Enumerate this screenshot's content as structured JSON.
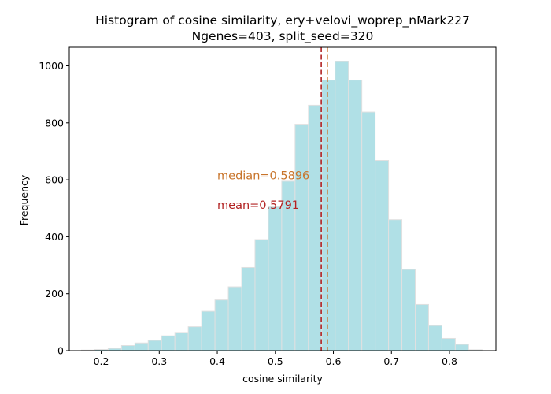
{
  "chart_data": {
    "type": "histogram",
    "title": "Histogram of cosine similarity, ery+velovi_woprep_nMark227",
    "subtitle": "Ngenes=403, split_seed=320",
    "xlabel": "cosine similarity",
    "ylabel": "Frequency",
    "xlim": [
      0.145,
      0.88
    ],
    "ylim": [
      0,
      1065
    ],
    "xticks": [
      0.2,
      0.3,
      0.4,
      0.5,
      0.6,
      0.7,
      0.8
    ],
    "xtick_labels": [
      "0.2",
      "0.3",
      "0.4",
      "0.5",
      "0.6",
      "0.7",
      "0.8"
    ],
    "yticks": [
      0,
      200,
      400,
      600,
      800,
      1000
    ],
    "ytick_labels": [
      "0",
      "200",
      "400",
      "600",
      "800",
      "1000"
    ],
    "bins": [
      0.166,
      0.189,
      0.212,
      0.235,
      0.258,
      0.281,
      0.304,
      0.327,
      0.35,
      0.373,
      0.396,
      0.419,
      0.442,
      0.465,
      0.488,
      0.511,
      0.534,
      0.557,
      0.58,
      0.603,
      0.626,
      0.649,
      0.672,
      0.695,
      0.718,
      0.741,
      0.764,
      0.787,
      0.81,
      0.833,
      0.856
    ],
    "counts": [
      2,
      4,
      8,
      18,
      27,
      36,
      52,
      64,
      84,
      138,
      178,
      224,
      292,
      390,
      505,
      595,
      795,
      862,
      950,
      1015,
      950,
      838,
      668,
      460,
      285,
      162,
      88,
      43,
      22,
      3
    ],
    "bar_color": "#b0e0e6",
    "edge_color": "#e0e0e0",
    "grid": false,
    "median": {
      "value": 0.5896,
      "label": "median=0.5896",
      "color": "#c8742a"
    },
    "mean": {
      "value": 0.5791,
      "label": "mean=0.5791",
      "color": "#b22222"
    },
    "annotation_x": 0.4,
    "median_label_y": 615,
    "mean_label_y": 512
  }
}
